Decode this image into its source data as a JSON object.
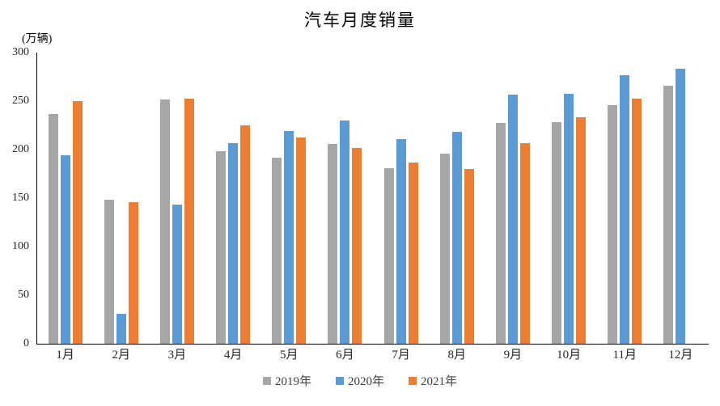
{
  "chart_data": {
    "type": "bar",
    "title": "汽车月度销量",
    "unit_label": "(万辆)",
    "xlabel": "",
    "ylabel": "(万辆)",
    "ylim": [
      0,
      300
    ],
    "yticks": [
      0,
      50,
      100,
      150,
      200,
      250,
      300
    ],
    "grid": false,
    "legend_position": "bottom",
    "categories": [
      "1月",
      "2月",
      "3月",
      "4月",
      "5月",
      "6月",
      "7月",
      "8月",
      "9月",
      "10月",
      "11月",
      "12月"
    ],
    "series": [
      {
        "name": "2019年",
        "id": "2019",
        "color": "#A6A6A6",
        "values": [
          236.7,
          148.2,
          252.0,
          198.0,
          191.3,
          205.6,
          180.8,
          195.8,
          227.1,
          228.4,
          245.7,
          265.8
        ]
      },
      {
        "name": "2020年",
        "id": "2020",
        "color": "#5B9BD5",
        "values": [
          194.1,
          31.0,
          143.0,
          207.0,
          219.4,
          230.0,
          211.2,
          218.6,
          256.5,
          257.3,
          277.0,
          283.1
        ]
      },
      {
        "name": "2021年",
        "id": "2021",
        "color": "#ED7D31",
        "values": [
          250.3,
          145.5,
          252.6,
          225.2,
          212.8,
          201.5,
          186.4,
          179.9,
          206.7,
          233.3,
          252.2,
          null
        ]
      }
    ]
  }
}
